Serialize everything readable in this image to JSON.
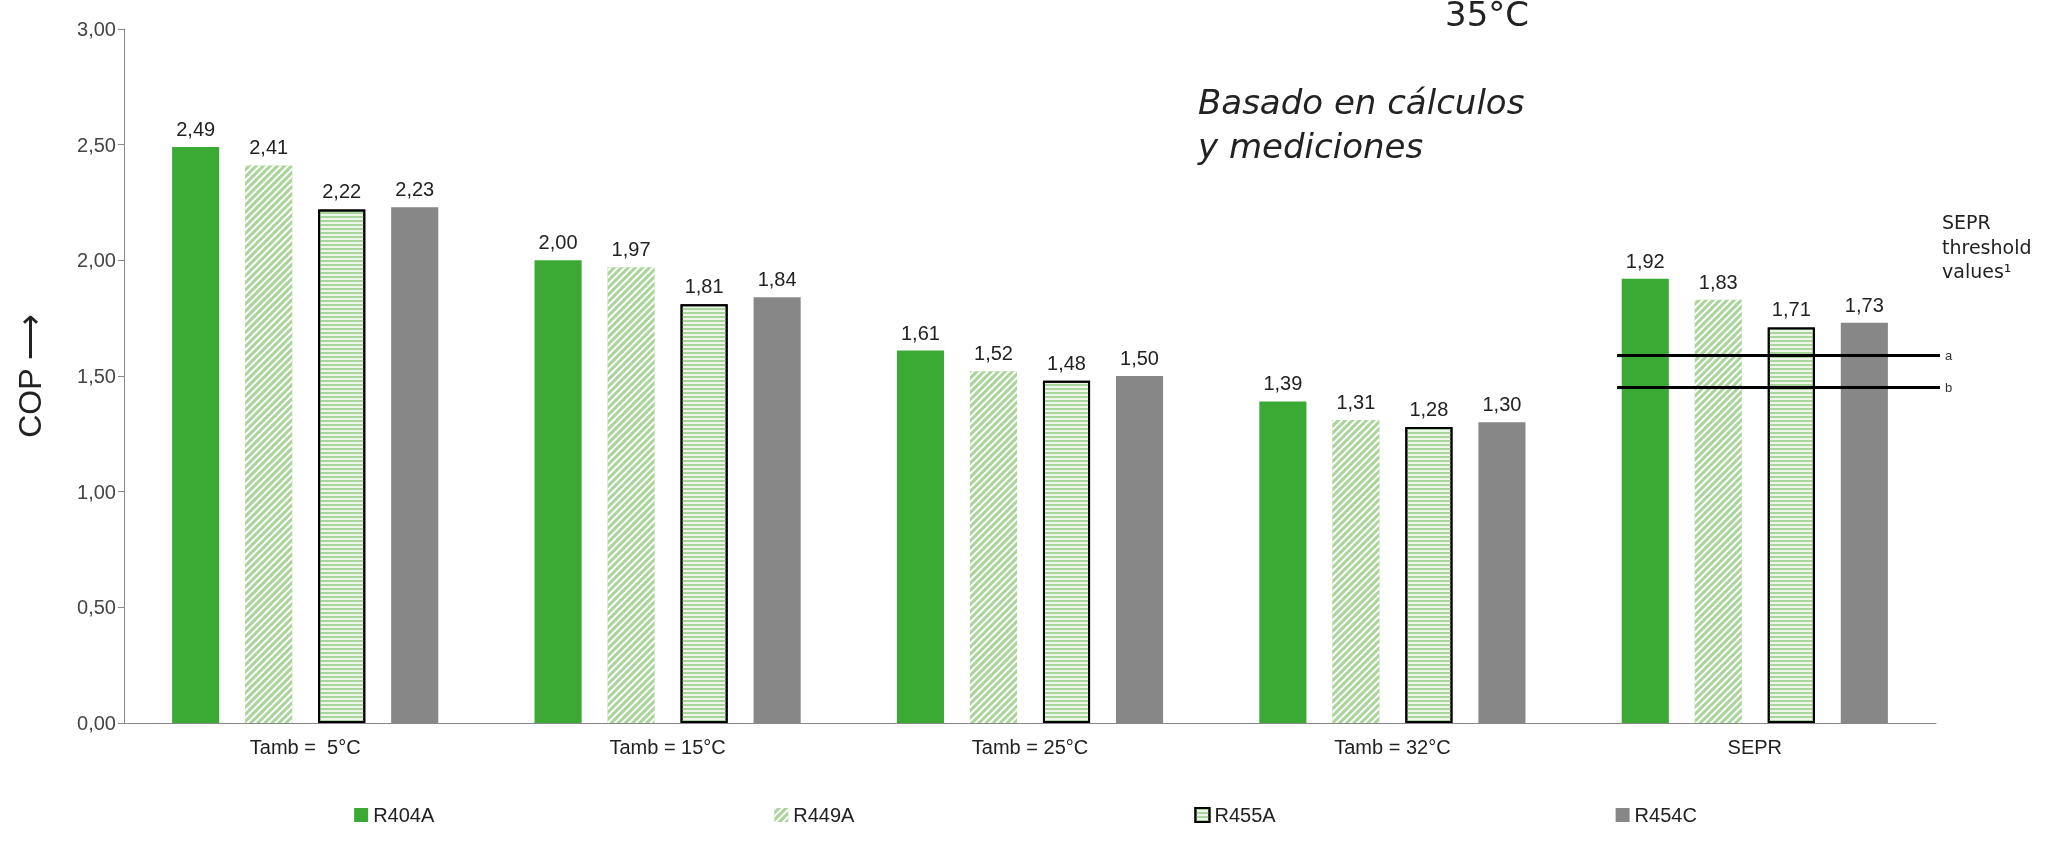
{
  "chart_data": {
    "type": "bar",
    "ylabel": "COP ⟶",
    "categories": [
      "Tamb =  5°C",
      "Tamb = 15°C",
      "Tamb = 25°C",
      "Tamb = 32°C",
      "SEPR"
    ],
    "series": [
      {
        "name": "R404A",
        "color": "#3aaa35",
        "values": [
          2.49,
          2.0,
          1.61,
          1.39,
          1.92
        ],
        "value_labels": [
          "2,49",
          "2,00",
          "1,61",
          "1,39",
          "1,92"
        ]
      },
      {
        "name": "R449A",
        "color": "#a9d49a",
        "values": [
          2.41,
          1.97,
          1.52,
          1.31,
          1.83
        ],
        "value_labels": [
          "2,41",
          "1,97",
          "1,52",
          "1,31",
          "1,83"
        ]
      },
      {
        "name": "R455A",
        "color": "#eef6ea",
        "values": [
          2.22,
          1.81,
          1.48,
          1.28,
          1.71
        ],
        "value_labels": [
          "2,22",
          "1,81",
          "1,48",
          "1,28",
          "1,71"
        ]
      },
      {
        "name": "R454C",
        "color": "#878787",
        "values": [
          2.23,
          1.84,
          1.5,
          1.3,
          1.73
        ],
        "value_labels": [
          "2,23",
          "1,84",
          "1,50",
          "1,30",
          "1,73"
        ]
      }
    ],
    "ylim": [
      0,
      3
    ],
    "yticks": [
      {
        "value": 0,
        "label": "0,00"
      },
      {
        "value": 0.5,
        "label": "0,50"
      },
      {
        "value": 1,
        "label": "1,00"
      },
      {
        "value": 1.5,
        "label": "1,50"
      },
      {
        "value": 2,
        "label": "2,00"
      },
      {
        "value": 2.5,
        "label": "2,50"
      },
      {
        "value": 3,
        "label": "3,00"
      }
    ],
    "grid": false,
    "legend": "bottom",
    "ref_lines": [
      {
        "axis": "y",
        "value": 1.59,
        "label": "a",
        "color": "#000000"
      },
      {
        "axis": "y",
        "value": 1.45,
        "label": "b",
        "color": "#000000"
      }
    ],
    "annotations": [
      "35°C",
      "Basado en cálculos y mediciones",
      "SEPR threshold values¹"
    ]
  }
}
